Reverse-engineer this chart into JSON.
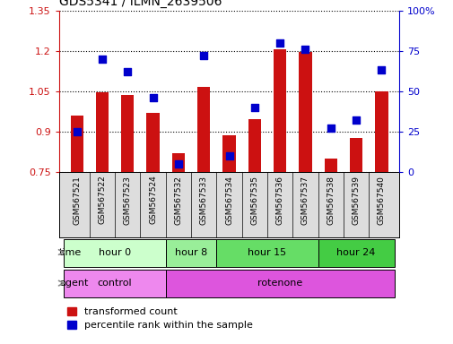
{
  "title": "GDS5341 / ILMN_2639506",
  "samples": [
    "GSM567521",
    "GSM567522",
    "GSM567523",
    "GSM567524",
    "GSM567532",
    "GSM567533",
    "GSM567534",
    "GSM567535",
    "GSM567536",
    "GSM567537",
    "GSM567538",
    "GSM567539",
    "GSM567540"
  ],
  "transformed_count": [
    0.96,
    1.047,
    1.035,
    0.97,
    0.82,
    1.065,
    0.885,
    0.945,
    1.205,
    1.195,
    0.8,
    0.875,
    1.048
  ],
  "percentile_rank": [
    25,
    70,
    62,
    46,
    5,
    72,
    10,
    40,
    80,
    76,
    27,
    32,
    63
  ],
  "ylim_left": [
    0.75,
    1.35
  ],
  "ylim_right": [
    0,
    100
  ],
  "yticks_left": [
    0.75,
    0.9,
    1.05,
    1.2,
    1.35
  ],
  "yticks_right": [
    0,
    25,
    50,
    75,
    100
  ],
  "ytick_labels_right": [
    "0",
    "25",
    "50",
    "75",
    "100%"
  ],
  "bar_color": "#cc1111",
  "dot_color": "#0000cc",
  "time_groups": [
    {
      "label": "hour 0",
      "start": 0,
      "end": 4,
      "color": "#ccffcc"
    },
    {
      "label": "hour 8",
      "start": 4,
      "end": 6,
      "color": "#99ee99"
    },
    {
      "label": "hour 15",
      "start": 6,
      "end": 10,
      "color": "#66dd66"
    },
    {
      "label": "hour 24",
      "start": 10,
      "end": 13,
      "color": "#44cc44"
    }
  ],
  "agent_groups": [
    {
      "label": "control",
      "start": 0,
      "end": 4,
      "color": "#ee88ee"
    },
    {
      "label": "rotenone",
      "start": 4,
      "end": 13,
      "color": "#dd55dd"
    }
  ],
  "background_color": "#ffffff",
  "bar_width": 0.5,
  "dot_size": 38,
  "legend_labels": [
    "transformed count",
    "percentile rank within the sample"
  ]
}
